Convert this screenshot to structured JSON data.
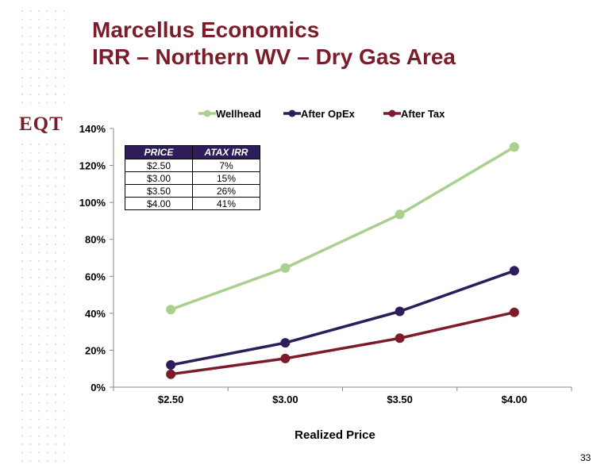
{
  "slide": {
    "title_line1": "Marcellus Economics",
    "title_line2": "IRR – Northern WV – Dry Gas Area",
    "logo_text": "EQT",
    "page_number": "33"
  },
  "table": {
    "headers": [
      "PRICE",
      "ATAX IRR"
    ],
    "rows": [
      [
        "$2.50",
        "7%"
      ],
      [
        "$3.00",
        "15%"
      ],
      [
        "$3.50",
        "26%"
      ],
      [
        "$4.00",
        "41%"
      ]
    ]
  },
  "colors": {
    "title": "#7b1c2a",
    "wellhead": "#a9d08e",
    "after_opex": "#2d1e5a",
    "after_tax": "#7b1c2a"
  },
  "chart_data": {
    "type": "line",
    "title": "",
    "xlabel": "Realized Price",
    "ylabel": "",
    "categories": [
      "$2.50",
      "$3.00",
      "$3.50",
      "$4.00"
    ],
    "ylim": [
      0,
      140
    ],
    "yticks": [
      "0%",
      "20%",
      "40%",
      "60%",
      "80%",
      "100%",
      "120%",
      "140%"
    ],
    "legend_position": "top",
    "grid": false,
    "series": [
      {
        "name": "Wellhead",
        "values": [
          42,
          64.5,
          93.5,
          130
        ]
      },
      {
        "name": "After OpEx",
        "values": [
          12,
          24,
          41,
          63
        ]
      },
      {
        "name": "After Tax",
        "values": [
          7,
          15.5,
          26.5,
          40.5
        ]
      }
    ]
  }
}
